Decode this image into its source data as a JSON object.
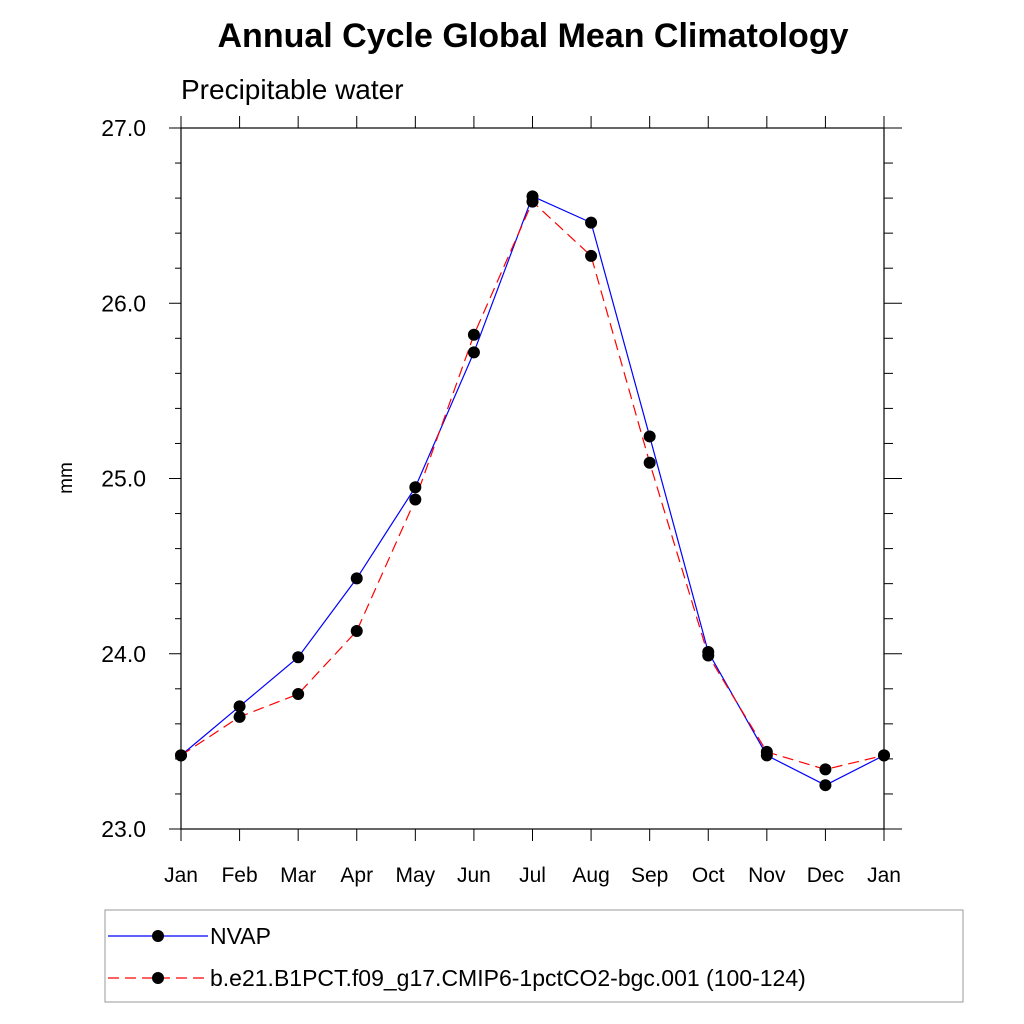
{
  "chart_data": {
    "type": "line",
    "title": "Annual Cycle Global Mean Climatology",
    "subtitle": "Precipitable water",
    "ylabel": "mm",
    "xlabel": "",
    "categories": [
      "Jan",
      "Feb",
      "Mar",
      "Apr",
      "May",
      "Jun",
      "Jul",
      "Aug",
      "Sep",
      "Oct",
      "Nov",
      "Dec",
      "Jan"
    ],
    "ylim": [
      23.0,
      27.0
    ],
    "yticks": [
      "23.0",
      "24.0",
      "25.0",
      "26.0",
      "27.0"
    ],
    "series": [
      {
        "name": "NVAP",
        "color": "#0000ff",
        "line_style": "solid",
        "marker": "filled-circle",
        "values": [
          23.42,
          23.7,
          23.98,
          24.43,
          24.95,
          25.72,
          26.61,
          26.46,
          25.24,
          24.01,
          23.42,
          23.25,
          23.42
        ]
      },
      {
        "name": "b.e21.B1PCT.f09_g17.CMIP6-1pctCO2-bgc.001 (100-124)",
        "color": "#ff0000",
        "line_style": "dashed",
        "marker": "filled-circle",
        "values": [
          23.42,
          23.64,
          23.77,
          24.13,
          24.88,
          25.82,
          26.58,
          26.27,
          25.09,
          23.99,
          23.44,
          23.34,
          23.42
        ]
      }
    ],
    "grid": false,
    "legend_position": "bottom"
  }
}
